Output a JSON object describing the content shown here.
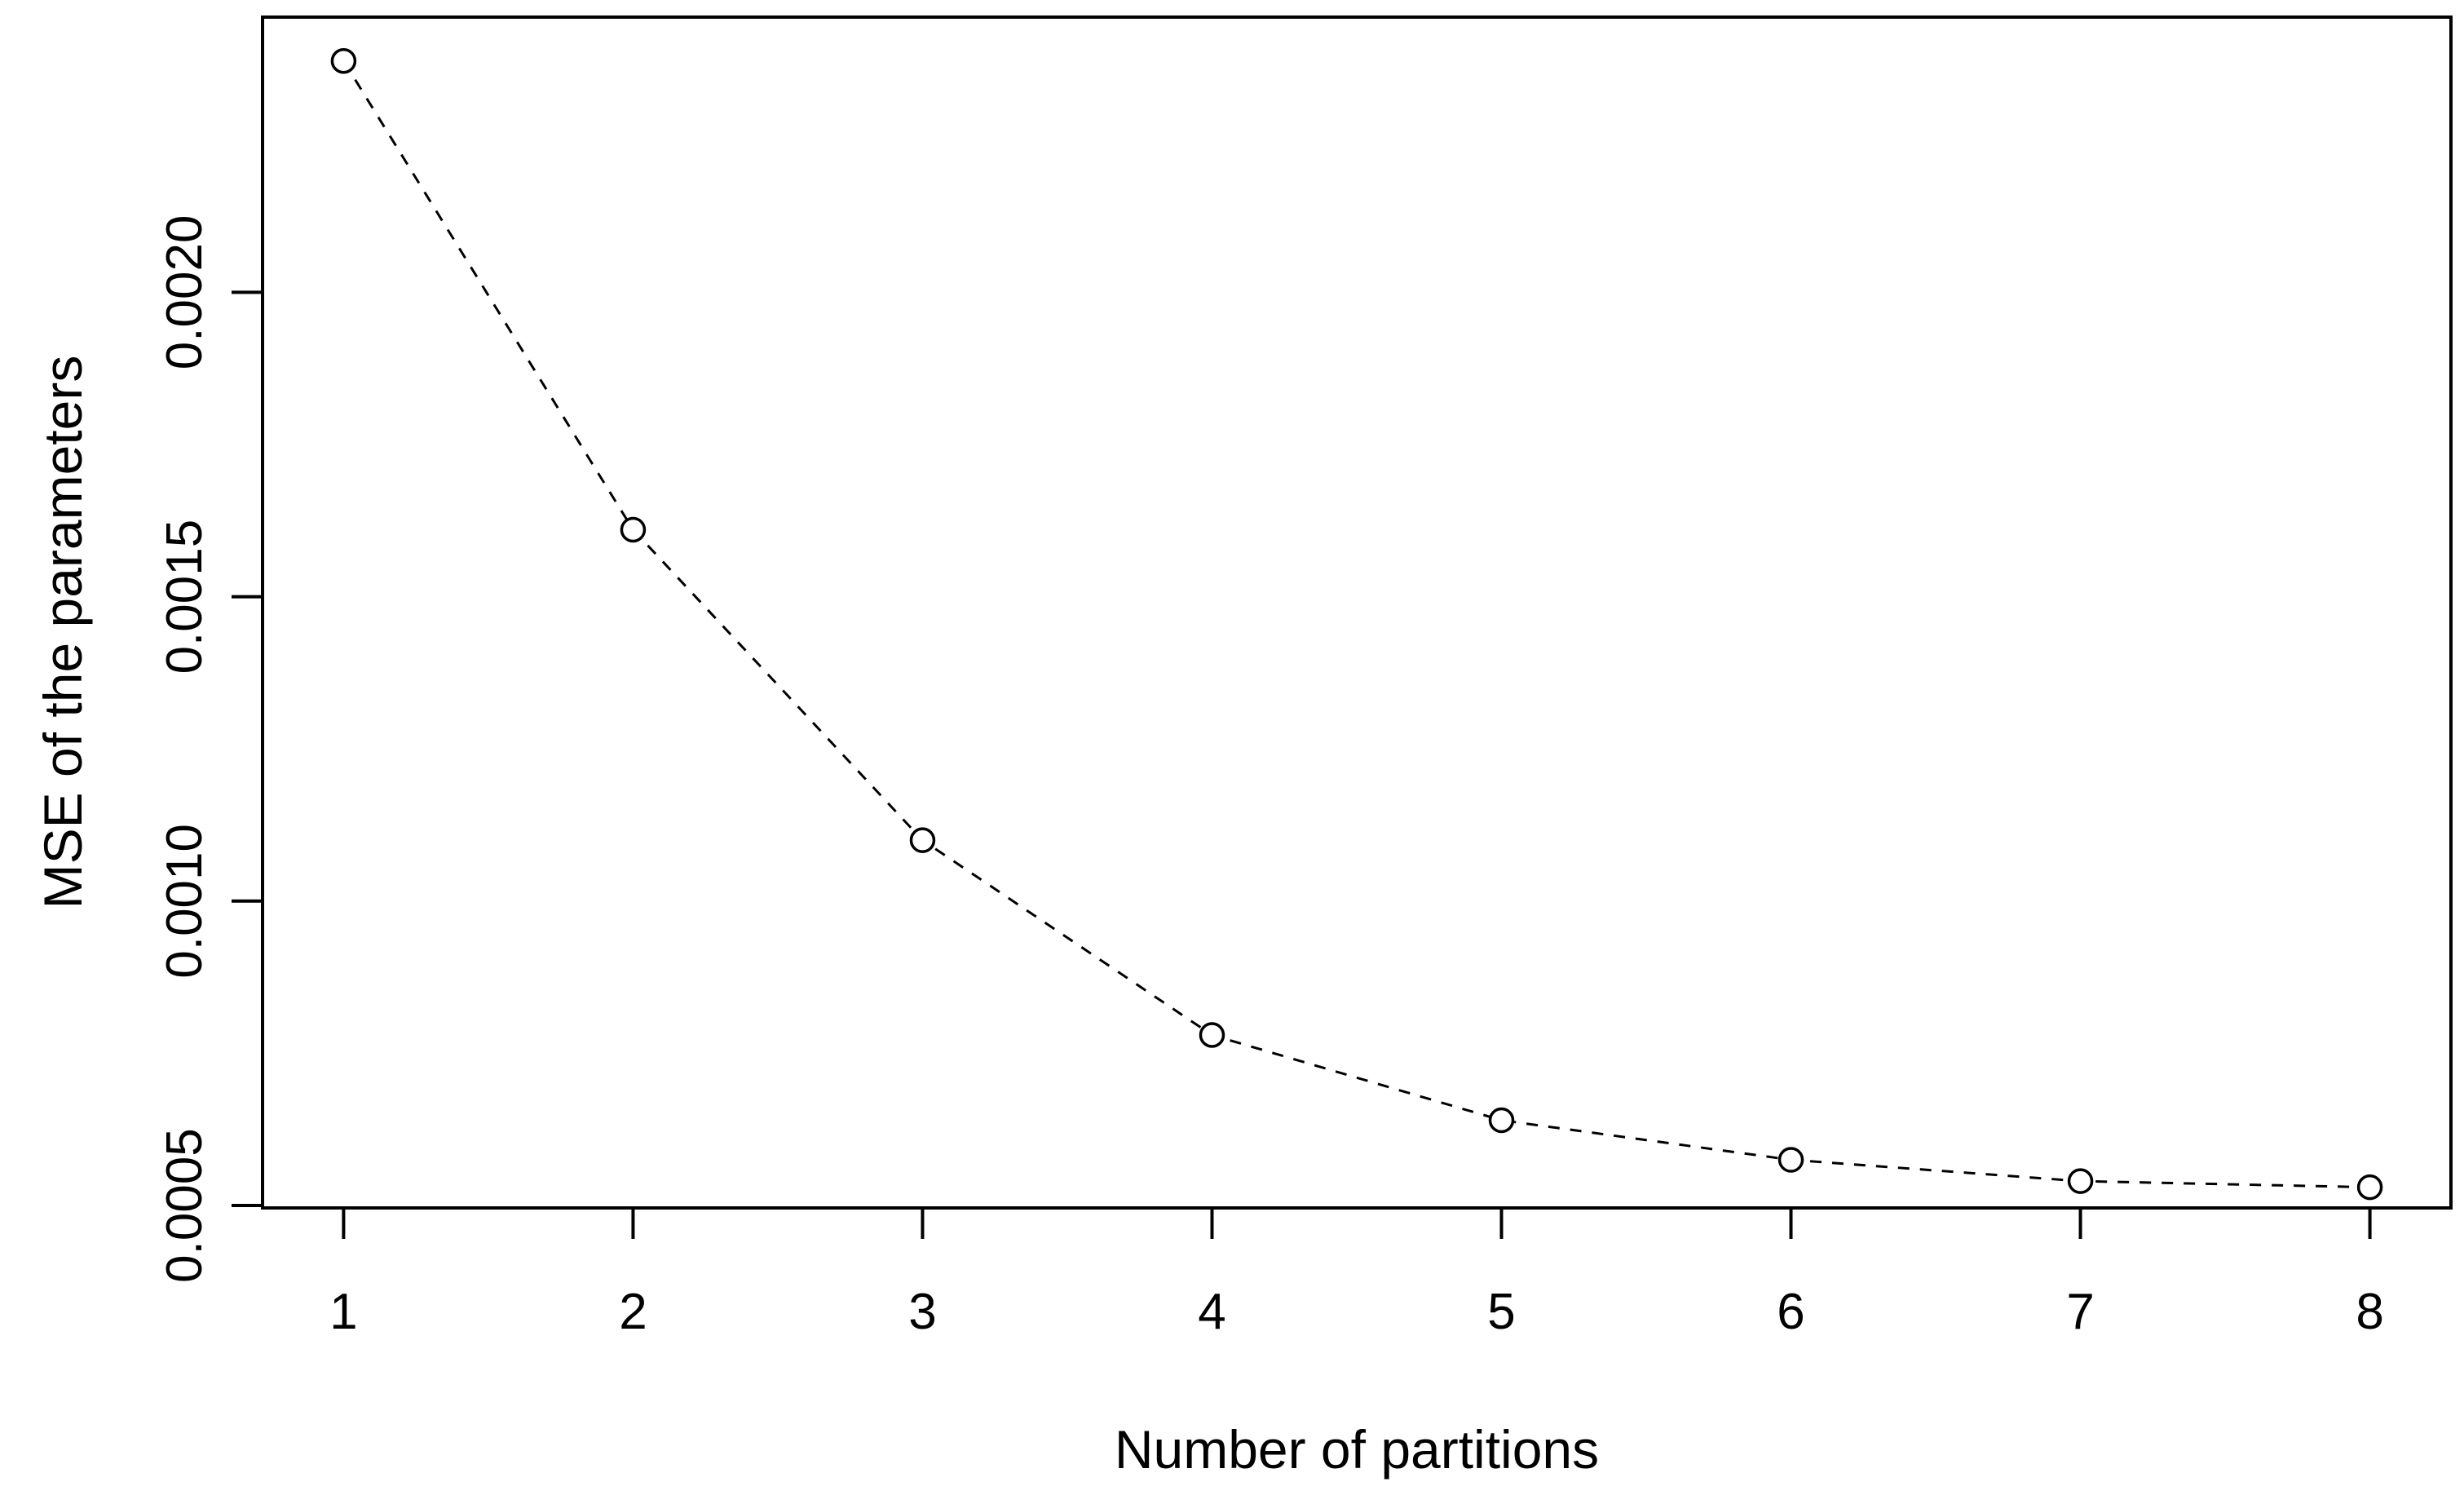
{
  "figure": {
    "background": "#ffffff",
    "foreground": "#000000",
    "style": "R-base-plot",
    "xlabel": "Number of partitions",
    "ylabel": "MSE of the parameters"
  },
  "chart_data": {
    "type": "line",
    "subtype": "scatter-with-dashed-line",
    "title": "",
    "xlabel": "Number of partitions",
    "ylabel": "MSE of the parameters",
    "x": [
      1,
      2,
      3,
      4,
      5,
      6,
      7,
      8
    ],
    "y": [
      0.00238,
      0.00161,
      0.0011,
      0.00078,
      0.00064,
      0.000575,
      0.00054,
      0.00053
    ],
    "series": [
      {
        "name": "MSE of the parameters",
        "x": [
          1,
          2,
          3,
          4,
          5,
          6,
          7,
          8
        ],
        "values": [
          0.00238,
          0.00161,
          0.0011,
          0.00078,
          0.00064,
          0.000575,
          0.00054,
          0.00053
        ]
      }
    ],
    "x_ticks": [
      1,
      2,
      3,
      4,
      5,
      6,
      7,
      8
    ],
    "x_tick_labels": [
      "1",
      "2",
      "3",
      "4",
      "5",
      "6",
      "7",
      "8"
    ],
    "y_ticks": [
      0.0005,
      0.001,
      0.0015,
      0.002
    ],
    "y_tick_labels": [
      "0.0005",
      "0.0010",
      "0.0015",
      "0.0020"
    ],
    "xlim": [
      0.72,
      8.28
    ],
    "ylim": [
      0.000496,
      0.002452
    ],
    "grid": false,
    "legend": false,
    "marker": "open-circle",
    "line_style": "dashed",
    "line_color": "#000000",
    "marker_color": "#000000"
  }
}
